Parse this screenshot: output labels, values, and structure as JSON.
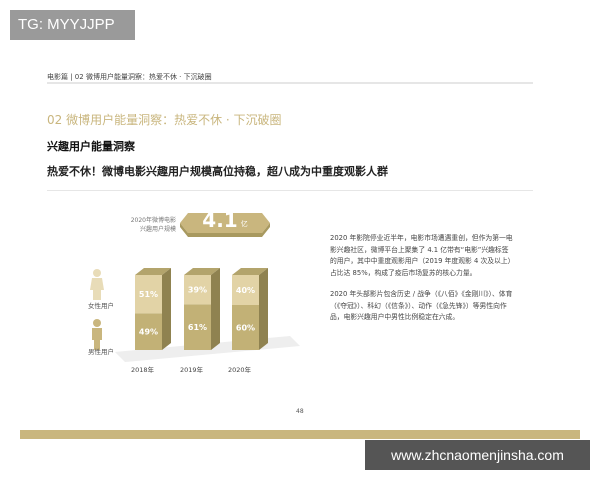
{
  "watermark_top": "TG: MYYJJPP",
  "watermark_bottom": "www.zhcnaomenjinsha.com",
  "breadcrumb": "电影篇 | 02  微博用户能量洞察：热爱不休 · 下沉破圈",
  "section_title": "02  微博用户能量洞察：热爱不休 · 下沉破圈",
  "subtitle": "兴趣用户能量洞察",
  "headline": "热爱不休！微博电影兴趣用户规模高位持稳，超八成为中重度观影人群",
  "scale": {
    "label_line1": "2020年微博电影",
    "label_line2": "兴趣用户规模",
    "value": "4.1",
    "unit": "亿"
  },
  "legend": {
    "female": "女性用户",
    "male": "男性用户"
  },
  "colors": {
    "accent": "#c9b67e",
    "female": "#e2d3a6",
    "male": "#c2b176"
  },
  "chart_data": {
    "type": "bar",
    "stacked": true,
    "categories": [
      "2018年",
      "2019年",
      "2020年"
    ],
    "series": [
      {
        "name": "男性用户",
        "values": [
          49,
          61,
          60
        ]
      },
      {
        "name": "女性用户",
        "values": [
          51,
          39,
          40
        ]
      }
    ],
    "labels": [
      [
        "49%",
        "61%",
        "60%"
      ],
      [
        "51%",
        "39%",
        "40%"
      ]
    ],
    "ylim": [
      0,
      100
    ]
  },
  "paragraphs": [
    "2020 年影院停业近半年，电影市场遭遇重创，但作为第一电影兴趣社区，微博平台上聚集了 4.1 亿带有“电影”兴趣标签的用户，其中中重度观影用户（2019 年度观影 4 次及以上）占比达 85%，构成了疫后市场复苏的核心力量。",
    "2020 年头部影片包含历史 / 战争（《八佰》《金刚川》）、体育（《夺冠》）、科幻（《信条》）、动作（《急先锋》）等男性向作品，电影兴趣用户中男性比例稳定在六成。"
  ],
  "page_number": "48"
}
